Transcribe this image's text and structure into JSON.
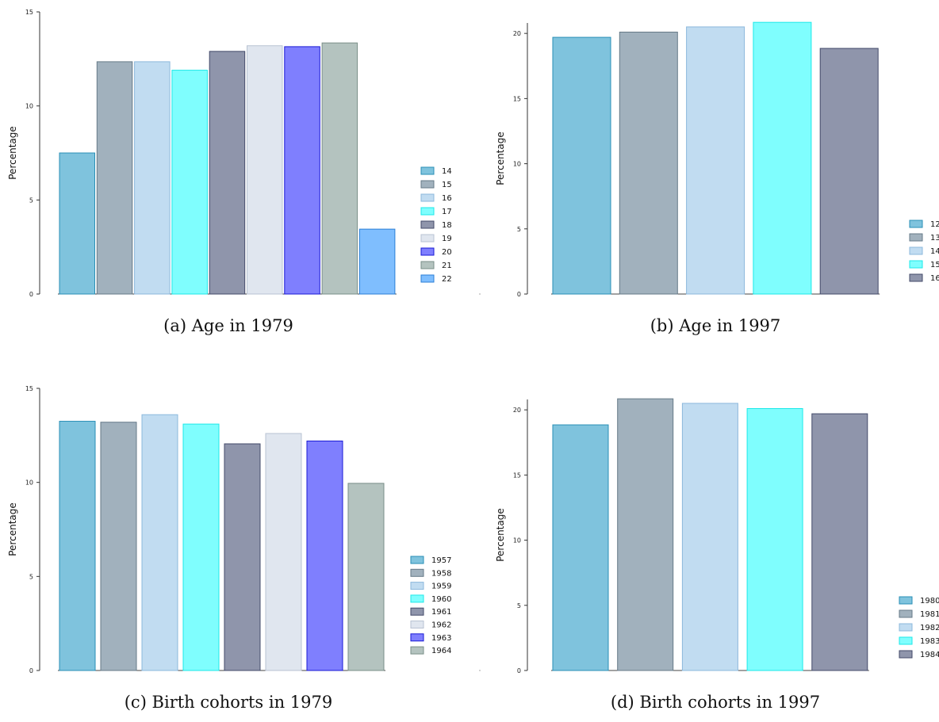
{
  "charts": [
    {
      "type": "bar",
      "caption": "(a) Age in 1979",
      "ylabel": "Percentage",
      "ylim": [
        0,
        15
      ],
      "yticks": [
        0,
        5,
        10,
        15
      ],
      "categories": [
        "14",
        "15",
        "16",
        "17",
        "18",
        "19",
        "20",
        "21",
        "22"
      ],
      "values": [
        7.5,
        12.35,
        12.35,
        11.9,
        12.9,
        13.2,
        13.15,
        13.35,
        3.45
      ],
      "colors": [
        "#7fc3dd",
        "#a1b1bd",
        "#c1dcf1",
        "#7ffefe",
        "#8f95ab",
        "#e0e6ef",
        "#7f7ffe",
        "#b4c3bf",
        "#7fbefe"
      ],
      "borders": [
        "#2a8fb6",
        "#667a88",
        "#8cb8dc",
        "#1ee8e8",
        "#434a6a",
        "#b9c3d3",
        "#1a1ad6",
        "#7a8f88",
        "#2b7fd6"
      ],
      "legend_position": "right"
    },
    {
      "type": "bar",
      "caption": "(b) Age in 1997",
      "ylabel": "Percentage",
      "ylim": [
        0,
        20.8
      ],
      "yticks": [
        0,
        5,
        10,
        15,
        20
      ],
      "categories": [
        "12",
        "13",
        "14",
        "15",
        "16"
      ],
      "values": [
        19.7,
        20.1,
        20.5,
        20.85,
        18.85
      ],
      "colors": [
        "#7fc3dd",
        "#a1b1bd",
        "#c1dcf1",
        "#7ffefe",
        "#8f95ab"
      ],
      "borders": [
        "#2a8fb6",
        "#667a88",
        "#8cb8dc",
        "#1ee8e8",
        "#434a6a"
      ],
      "legend_position": "right"
    },
    {
      "type": "bar",
      "caption": "(c) Birth cohorts in 1979",
      "ylabel": "Percentage",
      "ylim": [
        0,
        15
      ],
      "yticks": [
        0,
        5,
        10,
        15
      ],
      "categories": [
        "1957",
        "1958",
        "1959",
        "1960",
        "1961",
        "1962",
        "1963",
        "1964"
      ],
      "values": [
        13.25,
        13.2,
        13.6,
        13.1,
        12.05,
        12.6,
        12.2,
        9.95
      ],
      "colors": [
        "#7fc3dd",
        "#a1b1bd",
        "#c1dcf1",
        "#7ffefe",
        "#8f95ab",
        "#e0e6ef",
        "#7f7ffe",
        "#b4c3bf"
      ],
      "borders": [
        "#2a8fb6",
        "#667a88",
        "#8cb8dc",
        "#1ee8e8",
        "#434a6a",
        "#b9c3d3",
        "#1a1ad6",
        "#7a8f88"
      ],
      "legend_position": "right"
    },
    {
      "type": "bar",
      "caption": "(d) Birth cohorts in 1997",
      "ylabel": "Percentage",
      "ylim": [
        0,
        20.8
      ],
      "yticks": [
        0,
        5,
        10,
        15,
        20
      ],
      "categories": [
        "1980",
        "1981",
        "1982",
        "1983",
        "1984"
      ],
      "values": [
        18.85,
        20.85,
        20.5,
        20.1,
        19.7
      ],
      "colors": [
        "#7fc3dd",
        "#a1b1bd",
        "#c1dcf1",
        "#7ffefe",
        "#8f95ab"
      ],
      "borders": [
        "#2a8fb6",
        "#667a88",
        "#8cb8dc",
        "#1ee8e8",
        "#434a6a"
      ],
      "legend_position": "right"
    }
  ]
}
